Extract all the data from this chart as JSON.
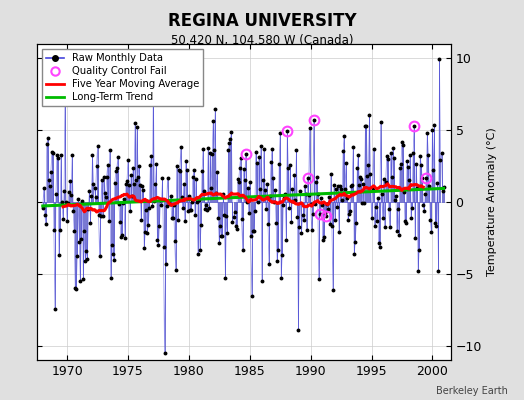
{
  "title": "REGINA UNIVERSITY",
  "subtitle": "50.420 N, 104.580 W (Canada)",
  "ylabel_right": "Temperature Anomaly (°C)",
  "credit": "Berkeley Earth",
  "ylim": [
    -11,
    11
  ],
  "xlim": [
    1967.5,
    2001.5
  ],
  "yticks": [
    -10,
    -5,
    0,
    5,
    10
  ],
  "xticks": [
    1970,
    1975,
    1980,
    1985,
    1990,
    1995,
    2000
  ],
  "background_color": "#e0e0e0",
  "plot_bg_color": "#ffffff",
  "line_color": "#4444dd",
  "stem_color": "#6666cc",
  "marker_color": "#000000",
  "ma_color": "#ff0000",
  "trend_color": "#00bb00",
  "qc_color": "#ff44ff",
  "seed": 12345,
  "start_year": 1968.0,
  "end_year": 2001.0
}
